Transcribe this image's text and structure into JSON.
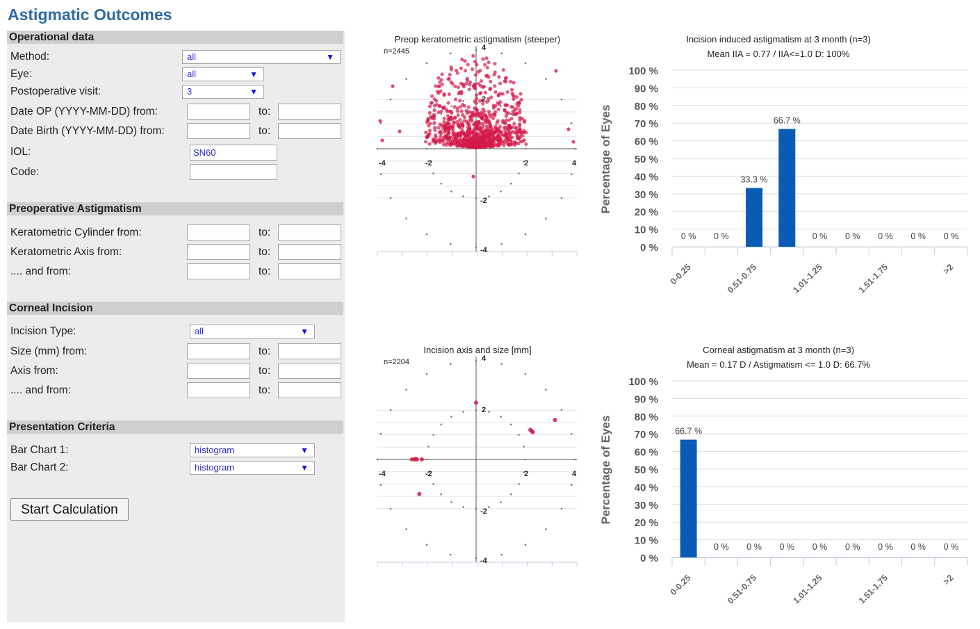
{
  "page": {
    "title": "Astigmatic Outcomes"
  },
  "sections": {
    "operational": "Operational data",
    "preop": "Preoperative Astigmatism",
    "incision": "Corneal Incision",
    "presentation": "Presentation Criteria"
  },
  "fields": {
    "method_label": "Method:",
    "method_value": "all",
    "eye_label": "Eye:",
    "eye_value": "all",
    "postop_label": "Postoperative visit:",
    "postop_value": "3",
    "date_op_label": "Date OP (YYYY-MM-DD) from:",
    "date_birth_label": "Date Birth (YYYY-MM-DD) from:",
    "iol_label": "IOL:",
    "iol_value": "SN60",
    "code_label": "Code:",
    "kcyl_label": "Keratometric Cylinder from:",
    "kaxis_label": "Keratometric Axis from:",
    "and_from_label": ".... and from:",
    "inc_type_label": "Incision Type:",
    "inc_type_value": "all",
    "size_label": "Size (mm) from:",
    "axis_label": "Axis from:",
    "bar1_label": "Bar Chart 1:",
    "bar1_value": "histogram",
    "bar2_label": "Bar Chart 2:",
    "bar2_value": "histogram",
    "to_label": "to:",
    "dropdown_glyph": "▼",
    "start_button": "Start Calculation"
  },
  "charts": {
    "scatter1": {
      "title": "Preop keratometric astigmatism (steeper)",
      "n_label": "n=2445",
      "ticks": [
        "-4",
        "-2",
        "2",
        "4",
        "2",
        "-2",
        "-4",
        "4"
      ],
      "point_color": "#d41a4a"
    },
    "scatter2": {
      "title": "Incision axis and size [mm]",
      "n_label": "n=2204",
      "ticks": [
        "-4",
        "-2",
        "2",
        "4",
        "2",
        "-2",
        "-4",
        "4"
      ],
      "point_color": "#d41a4a"
    },
    "bar1": {
      "title": "Incision induced astigmatism at 3 month (n=3)",
      "subtitle": "Mean IIA = 0.77 / IIA<=1.0 D: 100%",
      "ylabel": "Percentage of Eyes",
      "y_ticks": [
        "100 %",
        "90 %",
        "80 %",
        "70 %",
        "60 %",
        "50 %",
        "40 %",
        "30 %",
        "20 %",
        "10 %",
        "0 %"
      ],
      "x_tick_labels": [
        "0-0.25",
        "0.51-0.75",
        "1.01-1.25",
        "1.51-1.75",
        ">2"
      ],
      "bar_labels": [
        "0 %",
        "0 %",
        "33.3 %",
        "66.7 %",
        "0 %",
        "0 %",
        "0 %",
        "0 %",
        "0 %"
      ],
      "bar_color": "#0a5bb5"
    },
    "bar2": {
      "title": "Corneal astigmatism at 3 month (n=3)",
      "subtitle": "Mean = 0.17 D / Astigmatism <= 1.0 D: 66.7%",
      "ylabel": "Percentage of Eyes",
      "y_ticks": [
        "100 %",
        "90 %",
        "80 %",
        "70 %",
        "60 %",
        "50 %",
        "40 %",
        "30 %",
        "20 %",
        "10 %",
        "0 %"
      ],
      "x_tick_labels": [
        "0-0.25",
        "0.51-0.75",
        "1.01-1.25",
        "1.51-1.75",
        ">2"
      ],
      "bar_labels": [
        "66.7 %",
        "0 %",
        "0 %",
        "0 %",
        "0 %",
        "0 %",
        "0 %",
        "0 %",
        "0 %"
      ],
      "bar_color": "#0a5bb5"
    }
  },
  "chart_data": [
    {
      "type": "scatter",
      "title": "Preop keratometric astigmatism (steeper)",
      "n": 2445,
      "xlim": [
        -4,
        4
      ],
      "ylim": [
        -4,
        4
      ],
      "grid": true
    },
    {
      "type": "scatter",
      "title": "Incision axis and size [mm]",
      "n": 2204,
      "xlim": [
        -4,
        4
      ],
      "ylim": [
        -4,
        4
      ],
      "grid": true,
      "points": [
        [
          -2.5,
          0
        ],
        [
          -2.45,
          0.02
        ],
        [
          -2.4,
          0
        ],
        [
          -2.6,
          0
        ],
        [
          -2.2,
          0
        ],
        [
          -2.3,
          -1.4
        ],
        [
          2.3,
          1.1
        ],
        [
          2.25,
          1.15
        ],
        [
          2.2,
          1.2
        ],
        [
          3.2,
          1.6
        ],
        [
          0,
          2.3
        ]
      ]
    },
    {
      "type": "bar",
      "title": "Incision induced astigmatism at 3 month (n=3)",
      "subtitle": "Mean IIA = 0.77 / IIA<=1.0 D: 100%",
      "ylabel": "Percentage of Eyes",
      "ylim": [
        0,
        100
      ],
      "categories": [
        "0-0.25",
        "",
        "0.51-0.75",
        "",
        "1.01-1.25",
        "",
        "1.51-1.75",
        "",
        ">2"
      ],
      "values": [
        0,
        0,
        33.3,
        66.7,
        0,
        0,
        0,
        0,
        0
      ]
    },
    {
      "type": "bar",
      "title": "Corneal astigmatism at 3 month (n=3)",
      "subtitle": "Mean = 0.17 D / Astigmatism <= 1.0 D: 66.7%",
      "ylabel": "Percentage of Eyes",
      "ylim": [
        0,
        100
      ],
      "categories": [
        "0-0.25",
        "",
        "0.51-0.75",
        "",
        "1.01-1.25",
        "",
        "1.51-1.75",
        "",
        ">2"
      ],
      "values": [
        66.7,
        0,
        0,
        0,
        0,
        0,
        0,
        0,
        0
      ]
    }
  ]
}
